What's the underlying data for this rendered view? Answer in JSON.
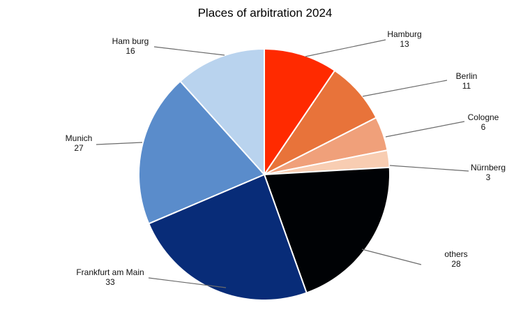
{
  "chart_data": {
    "type": "pie",
    "title": "Places of arbitration 2024",
    "slices": [
      {
        "name": "Hamburg",
        "value": 13,
        "color": "#ff2a00"
      },
      {
        "name": "Berlin",
        "value": 11,
        "color": "#e8733a"
      },
      {
        "name": "Cologne",
        "value": 6,
        "color": "#f0a07a"
      },
      {
        "name": "Nürnberg",
        "value": 3,
        "color": "#f8cdb2"
      },
      {
        "name": "others",
        "value": 28,
        "color": "#000205"
      },
      {
        "name": "Frankfurt am Main",
        "value": 33,
        "color": "#082c78"
      },
      {
        "name": "Munich",
        "value": 27,
        "color": "#5a8ccb"
      },
      {
        "name": "Ham burg",
        "value": 16,
        "color": "#b9d3ee"
      }
    ],
    "legend": "none"
  }
}
